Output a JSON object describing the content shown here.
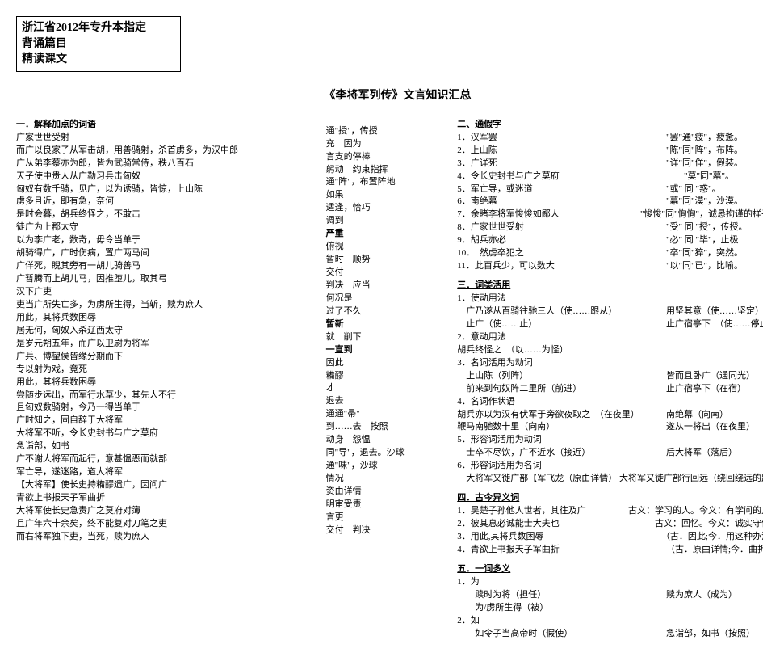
{
  "header": {
    "line1": "浙江省2012年专升本指定",
    "line2": "背诵篇目",
    "line3": "精读课文"
  },
  "title": "《李将军列传》文言知识汇总",
  "left": {
    "section1_title": "一．解释加点的词语",
    "items": [
      "广家世世受射",
      "而广以良家子从军击胡，用善骑射，杀首虏多，为汉中郎",
      "广从弟李蔡亦为郎，皆为武骑常侍，秩八百石",
      "天子使中贵人从广勒习兵击匈奴",
      "匈奴有数千骑，见广，以为诱骑，皆惊，上山陈",
      "虏多且近，即有急，奈何",
      "是时会暮，胡兵终怪之，不敢击",
      "徒广为上郡太守",
      "以为李广老，数奇，毋令当单于",
      "胡骑得广，广时伤病，置广两马间",
      "广佯死，睨其旁有一胡儿骑善马",
      "广暂腾而上胡儿马，因推堕儿，取其弓",
      "汉下广吏",
      "吏当广所失亡多，为虏所生得，当斩，赎为庶人",
      "用此，其将兵数困辱",
      "居无何，匈奴入杀辽西太守",
      "是岁元朔五年，而广以卫尉为将军",
      "广兵、博望侯皆缘分期而下",
      "专以射为戏，竟死",
      "用此，其将兵数困辱",
      "尝随步远出，而军行水草少，其先人不行",
      "且匈奴数骑射，今乃一得当单于",
      "广时知之，固自辞于大将军",
      "大将军不听，令长史封书与广之莫府",
      "急诣部，如书",
      "广不谢大将军而起行，意甚愠恶而就部",
      "军亡导，遂迷路，道大将军",
      "【大将军】使长史持糒醪遗广，因问广",
      "青欲上书报天子军曲折",
      "大将军使长史急责广之莫府对簿",
      "且广年六十余矣，终不能复对刀笔之吏",
      "而右将军独下吏，当死，赎为庶人"
    ]
  },
  "mid": {
    "items": [
      "通\"授\"，传授",
      "充　因为",
      "言支的停棒",
      "躬动　约束指挥",
      "通\"阵\"，布置阵地",
      "如果",
      "适逢，恰巧",
      "调到",
      "严重",
      "俯视",
      "暂时　顺势",
      "交付",
      "判决　应当",
      "何况是",
      "过了不久",
      "暂新",
      "就　削下",
      "一直到",
      "因此",
      "糒醪",
      "才",
      "退去",
      "通通\"帚\"",
      "到……去　按照",
      "动身　怨愠",
      "同\"导\"，退去。沙球",
      "通\"味\"，沙球",
      "情况",
      "资由详情",
      "明审受责",
      "言更",
      "交付　判决"
    ]
  },
  "right": {
    "sec2_title": "二、通假字",
    "sec2": [
      {
        "l": "1．汉军罢",
        "r": "\"罢\"通\"疲\"，疲惫。"
      },
      {
        "l": "2．上山陈",
        "r": "\"陈\"同\"阵\"，布阵。"
      },
      {
        "l": "3．广详死",
        "r": "\"详\"同\"佯\"，假装。"
      },
      {
        "l": "4．令长史封书与广之莫府",
        "r": "　　\"莫\"同\"幕\"。"
      },
      {
        "l": "5．军亡导，或迷道",
        "r": "\"或\" 同 \"惑\"。"
      },
      {
        "l": "6．南绝幕",
        "r": "\"幕\"同\"漠\"，沙漠。"
      },
      {
        "l": "7．余睹李将军悛悛如鄙人",
        "r": "\"悛悛\"同\"恂恂\"，诚恳拘谨的样子。"
      },
      {
        "l": "8．广家世世受射",
        "r": "\"受\" 同 \"授\"，传授。"
      },
      {
        "l": "9．胡兵亦必",
        "r": "\"必\" 同 \"毕\"，止极"
      },
      {
        "l": "10．　然虏卒犯之",
        "r": "\"卒\"同\"猝\"，突然。"
      },
      {
        "l": "11．此百兵少，可以数大",
        "r": "\"以\"同\"已\"，比喻。"
      }
    ],
    "sec3_title": "三．词类活用",
    "sec3_1_title": "1．使动用法",
    "sec3_1": [
      {
        "l": "　广乃遂从百骑往驰三人（使……跟从）",
        "r": "用坚其意（使……坚定）"
      },
      {
        "l": "　止广（使……止）",
        "r": "止广宿亭下　（使……停止）"
      }
    ],
    "sec3_2_title": "2．意动用法",
    "sec3_2_line": "胡兵终怪之　（以……为怪）",
    "sec3_3_title": "3．名词活用为动词",
    "sec3_3": [
      {
        "l": "　上山陈（列阵）",
        "r": "皆而且卧广（通同光）"
      },
      {
        "l": "　前来到句奴阵二里所（前进）",
        "r": "止广宿亭下（在宿）"
      }
    ],
    "sec3_4_title": "4．名词作状语",
    "sec3_4": [
      {
        "l": "胡兵亦以为汉有伏军于旁欲夜取之　（在夜里）",
        "r": "南绝幕（向南）"
      },
      {
        "l": "鞭马南驰数十里（向南）",
        "r": "遂从一将出（在夜里）"
      }
    ],
    "sec3_5_title": "5．形容词活用为动词",
    "sec3_5": [
      {
        "l": "　士卒不尽饮，广不近水（接近）",
        "r": "后大将军（落后）"
      }
    ],
    "sec3_6_title": "6．形容词活用为名词",
    "sec3_6": [
      {
        "l": "　大将军又徙广部【军飞龙（原由详情） 大将军又徙广部行回远（绕回绕远的路）",
        "r": ""
      }
    ],
    "sec4_title": "四．古今异义词",
    "sec4": [
      {
        "l": "1．吴楚子孙他人世者，其往及广",
        "r": "古义：学习的人。今义：有学问的人。"
      },
      {
        "l": "2．彼其息必诚能士大夫也",
        "r": "古义：回忆。今义：诚实守信用"
      },
      {
        "l": "3．用此,其将兵数困辱",
        "r": "（古．因此;今．用这种办法）"
      },
      {
        "l": "4．青欲上书报天子军曲折",
        "r": "（古．原由详情;今．曲折）"
      }
    ],
    "sec5_title": "五．一词多义",
    "sec5_1_title": "1．为",
    "sec5_1": [
      {
        "l": "　　赎时为将（担任）",
        "r": "赎为庶人（成为）"
      },
      {
        "l": "　　为/虏所生得（被）",
        "r": ""
      }
    ],
    "sec5_2_title": "2．如",
    "sec5_2": [
      {
        "l": "　　如令子当高帝时（假使）",
        "r": "急诣部，如书（按照）"
      }
    ]
  }
}
